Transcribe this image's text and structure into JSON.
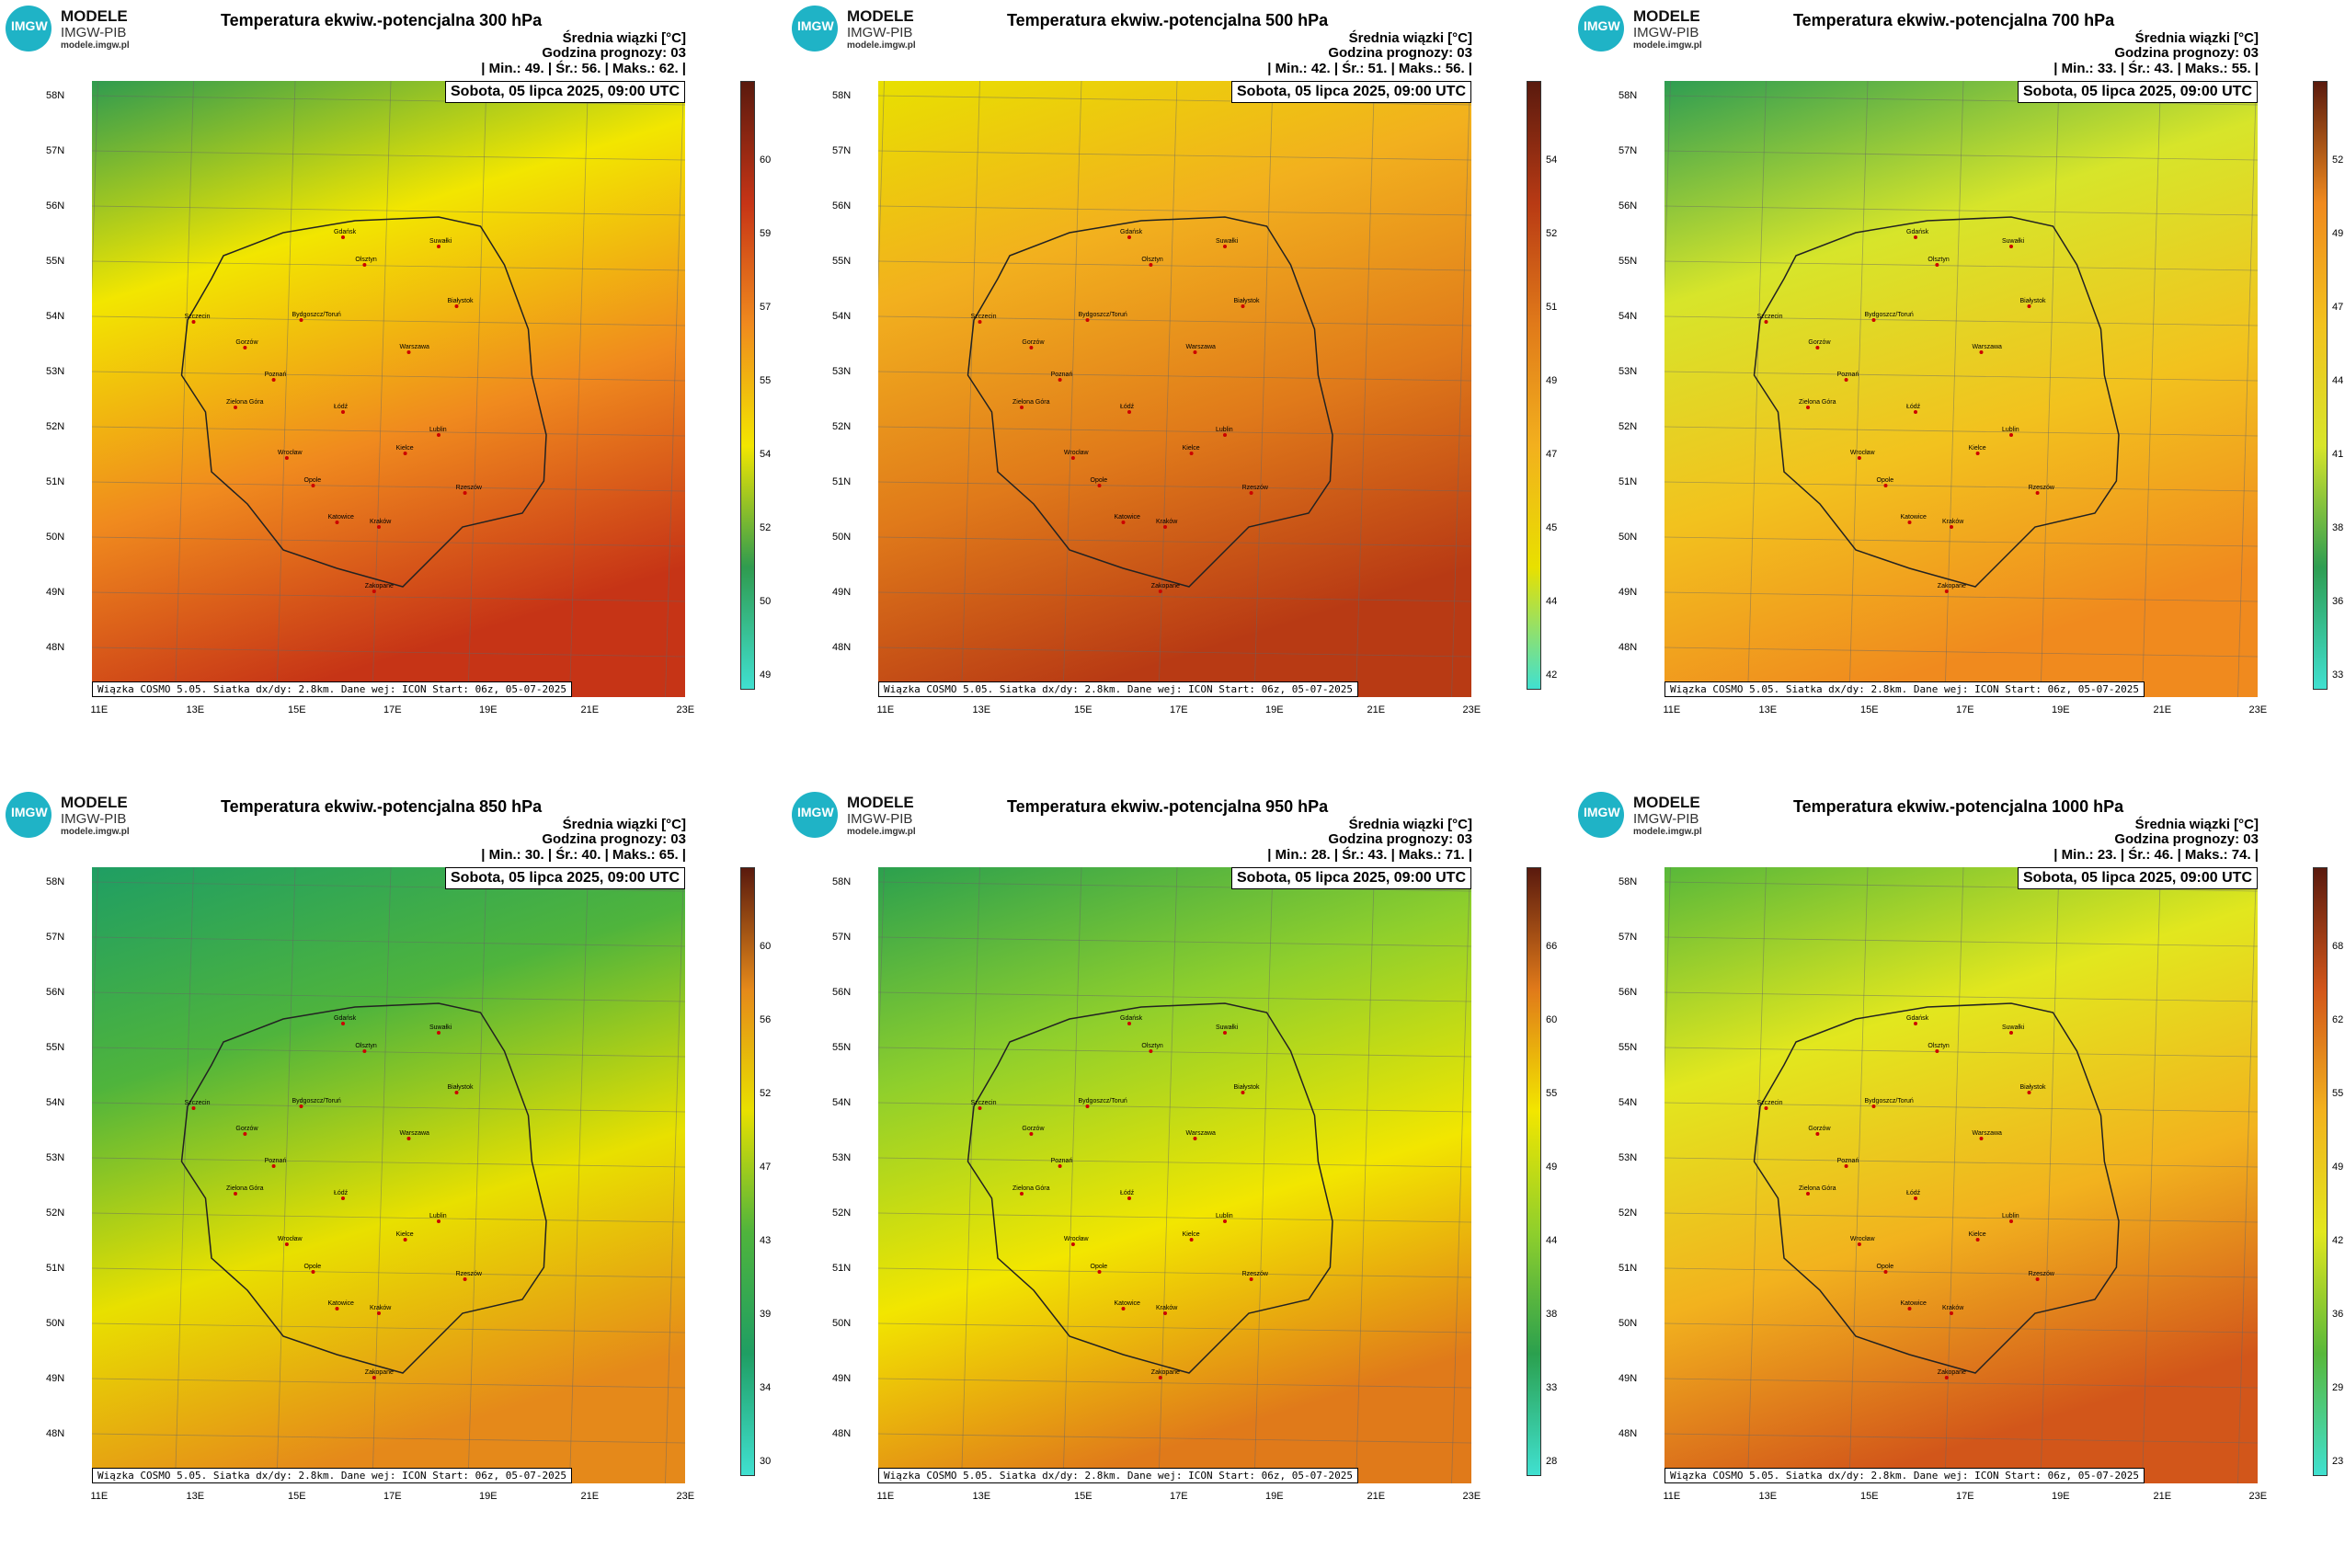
{
  "logo": {
    "mark": "IMGW",
    "line1": "MODELE",
    "line2": "IMGW-PIB",
    "line3": "modele.imgw.pl"
  },
  "common": {
    "srednia_label": "Średnia wiązki [°C]",
    "godzina_label": "Godzina prognozy: 03",
    "date": "Sobota, 05 lipca 2025, 09:00 UTC",
    "footer": "Wiązka COSMO 5.05. Siatka dx/dy: 2.8km. Dane wej: ICON Start: 06z, 05-07-2025",
    "lat_labels": [
      "58N",
      "57N",
      "56N",
      "55N",
      "54N",
      "53N",
      "52N",
      "51N",
      "50N",
      "49N",
      "48N"
    ],
    "lon_labels": [
      "11E",
      "13E",
      "15E",
      "17E",
      "19E",
      "21E",
      "23E"
    ]
  },
  "panels": [
    {
      "title": "Temperatura ekwiw.-potencjalna 300 hPa",
      "stats": "| Min.:    49. | Śr.:    56. | Maks.:    62. |",
      "ticks": [
        "60",
        "59",
        "57",
        "55",
        "54",
        "52",
        "50",
        "49"
      ],
      "palette": [
        "#2f9b4f",
        "#f2e600",
        "#f08a1e",
        "#c63416"
      ]
    },
    {
      "title": "Temperatura ekwiw.-potencjalna 500 hPa",
      "stats": "| Min.:    42. | Śr.:    51. | Maks.:    56. |",
      "ticks": [
        "54",
        "52",
        "51",
        "49",
        "47",
        "45",
        "44",
        "42"
      ],
      "palette": [
        "#e8e000",
        "#f2b01e",
        "#e07a1a",
        "#b83a14"
      ]
    },
    {
      "title": "Temperatura ekwiw.-potencjalna 700 hPa",
      "stats": "| Min.:    33. | Śr.:    43. | Maks.:    55. |",
      "ticks": [
        "52",
        "49",
        "47",
        "44",
        "41",
        "38",
        "36",
        "33"
      ],
      "palette": [
        "#2e9d52",
        "#d7e52a",
        "#f2c21e",
        "#f08a1e"
      ]
    },
    {
      "title": "Temperatura ekwiw.-potencjalna 850 hPa",
      "stats": "| Min.:    30. | Śr.:    40. | Maks.:    65. |",
      "ticks": [
        "60",
        "56",
        "52",
        "47",
        "43",
        "39",
        "34",
        "30"
      ],
      "palette": [
        "#1f9e63",
        "#4fb43c",
        "#e8e000",
        "#e5891a"
      ]
    },
    {
      "title": "Temperatura ekwiw.-potencjalna 950 hPa",
      "stats": "| Min.:    28. | Śr.:    43. | Maks.:    71. |",
      "ticks": [
        "66",
        "60",
        "55",
        "49",
        "44",
        "38",
        "33",
        "28"
      ],
      "palette": [
        "#2ba04e",
        "#8fcf2c",
        "#f2e600",
        "#e07a1a"
      ]
    },
    {
      "title": "Temperatura ekwiw.-potencjalna 1000 hPa",
      "stats": "| Min.:    23. | Śr.:    46. | Maks.:    74. |",
      "ticks": [
        "68",
        "62",
        "55",
        "49",
        "42",
        "36",
        "29",
        "23"
      ],
      "palette": [
        "#58b83a",
        "#e2e71e",
        "#f2b21e",
        "#d2561a"
      ]
    }
  ],
  "cities": [
    "Gdańsk",
    "Olsztyn",
    "Suwałki",
    "Białystok",
    "Szczecin",
    "Bydgoszcz/Toruń",
    "Gorzów",
    "Poznań",
    "Warszawa",
    "Zielona Góra",
    "Łódź",
    "Lublin",
    "Wrocław",
    "Kielce",
    "Opole",
    "Rzeszów",
    "Katowice",
    "Kraków",
    "Zakopane"
  ]
}
